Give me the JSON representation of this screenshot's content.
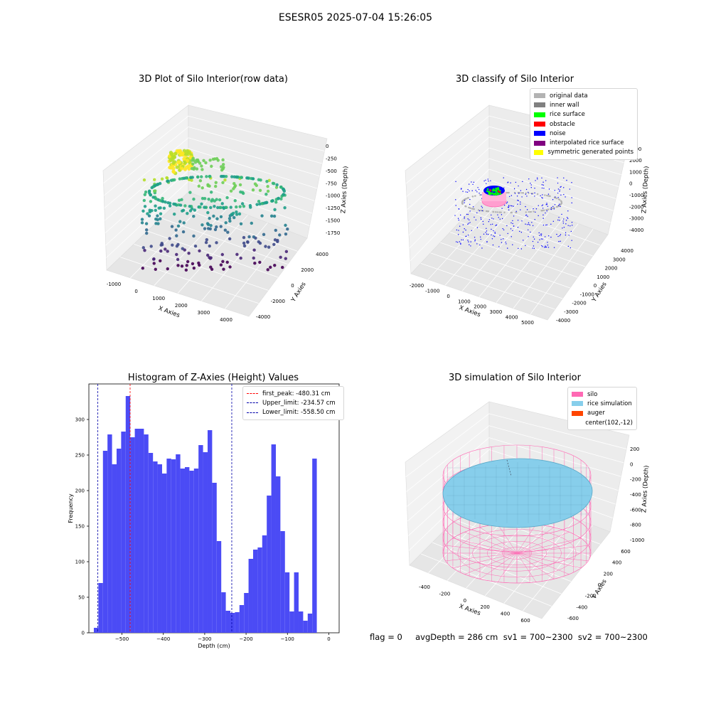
{
  "suptitle": "ESESR05 2025-07-04 15:26:05",
  "panels": {
    "raw": {
      "title": "3D Plot of Silo Interior(row data)",
      "xlabel": "X Axies",
      "ylabel": "Y Axies",
      "zlabel": "Z Axies (Depth)",
      "xticks": [
        "-1000",
        "0",
        "1000",
        "2000",
        "3000",
        "4000"
      ],
      "yticks": [
        "4000",
        "2000",
        "0",
        "-2000",
        "-4000"
      ],
      "zticks": [
        "0",
        "-250",
        "-500",
        "-750",
        "-1000",
        "-1250",
        "-1500",
        "-1750"
      ]
    },
    "classify": {
      "title": "3D classify of Silo Interior",
      "xlabel": "X Axies",
      "ylabel": "Y Axies",
      "zlabel": "Z Axies (Depth)",
      "xticks": [
        "-2000",
        "-1000",
        "0",
        "1000",
        "2000",
        "3000",
        "4000",
        "5000"
      ],
      "yticks": [
        "4000",
        "3000",
        "2000",
        "1000",
        "0",
        "-1000",
        "-2000",
        "-3000",
        "-4000"
      ],
      "zticks": [
        "2000",
        "1000",
        "0",
        "-1000",
        "-2000",
        "-3000",
        "-4000"
      ],
      "ztick_top": "000",
      "legend": [
        {
          "label": "original data",
          "color": "#b3b3b3"
        },
        {
          "label": "inner wall",
          "color": "#808080"
        },
        {
          "label": "rice surface",
          "color": "#00ff00"
        },
        {
          "label": "obstacle",
          "color": "#ff0000"
        },
        {
          "label": "noise",
          "color": "#0000ff"
        },
        {
          "label": "interpolated rice surface",
          "color": "#800080"
        },
        {
          "label": "symmetric generated points",
          "color": "#ffff00"
        }
      ]
    },
    "simulation": {
      "title": "3D simulation of Silo Interior",
      "xlabel": "X Axies",
      "ylabel": "Y Axies",
      "zlabel": "Z Axies (Depth)",
      "xticks": [
        "-400",
        "-200",
        "0",
        "200",
        "400",
        "600"
      ],
      "yticks": [
        "600",
        "400",
        "200",
        "0",
        "-200",
        "-400",
        "-600"
      ],
      "zticks": [
        "200",
        "0",
        "-200",
        "-400",
        "-600",
        "-800",
        "-1000"
      ],
      "legend": [
        {
          "label": "silo",
          "color": "#ff69b4"
        },
        {
          "label": "rice simulation",
          "color": "#87ceeb"
        },
        {
          "label": "auger",
          "color": "#ff4500"
        },
        {
          "label": "center(102,-12)",
          "color": ""
        }
      ]
    }
  },
  "status_text": "flag = 0     avgDepth = 286 cm  sv1 = 700~2300  sv2 = 700~2300",
  "chart_data": [
    {
      "type": "scatter",
      "title": "3D Plot of Silo Interior(row data)",
      "xlabel": "X Axies",
      "ylabel": "Y Axies",
      "zlabel": "Z Axies (Depth)",
      "xlim": [
        -1200,
        4500
      ],
      "ylim": [
        -4500,
        4500
      ],
      "zlim": [
        -1900,
        100
      ],
      "colormap": "viridis"
    },
    {
      "type": "scatter",
      "title": "3D classify of Silo Interior",
      "xlabel": "X Axies",
      "ylabel": "Y Axies",
      "zlabel": "Z Axies (Depth)",
      "xlim": [
        -2500,
        5500
      ],
      "ylim": [
        -4500,
        4500
      ],
      "zlim": [
        -4800,
        3000
      ]
    },
    {
      "type": "bar",
      "title": "Histogram of Z-Axies (Height) Values",
      "xlabel": "Depth (cm)",
      "ylabel": "Frequency",
      "xlim": [
        -580,
        25
      ],
      "ylim": [
        0,
        350
      ],
      "xticks": [
        -500,
        -400,
        -300,
        -200,
        -100,
        0
      ],
      "yticks": [
        0,
        50,
        100,
        150,
        200,
        250,
        300
      ],
      "bin_start": -568,
      "bin_width": 11,
      "values": [
        7,
        70,
        256,
        279,
        237,
        259,
        283,
        333,
        275,
        287,
        287,
        279,
        253,
        241,
        237,
        224,
        245,
        244,
        251,
        231,
        233,
        228,
        231,
        264,
        254,
        285,
        211,
        129,
        57,
        31,
        28,
        29,
        39,
        56,
        104,
        117,
        120,
        137,
        193,
        265,
        220,
        143,
        85,
        30,
        85,
        30,
        17,
        27,
        245
      ],
      "bar_color": "#4b4bf5",
      "lines": [
        {
          "label": "first_peak: -480.31 cm",
          "x": -480.31,
          "color": "#ff0000"
        },
        {
          "label": "Upper_limit: -234.57 cm",
          "x": -234.57,
          "color": "#0000aa"
        },
        {
          "label": "Lower_limit: -558.50 cm",
          "x": -558.5,
          "color": "#0000aa"
        }
      ]
    },
    {
      "type": "area",
      "title": "3D simulation of Silo Interior",
      "xlabel": "X Axies",
      "ylabel": "Y Axies",
      "zlabel": "Z Axies (Depth)",
      "xlim": [
        -500,
        700
      ],
      "ylim": [
        -650,
        650
      ],
      "zlim": [
        -1050,
        300
      ]
    }
  ]
}
